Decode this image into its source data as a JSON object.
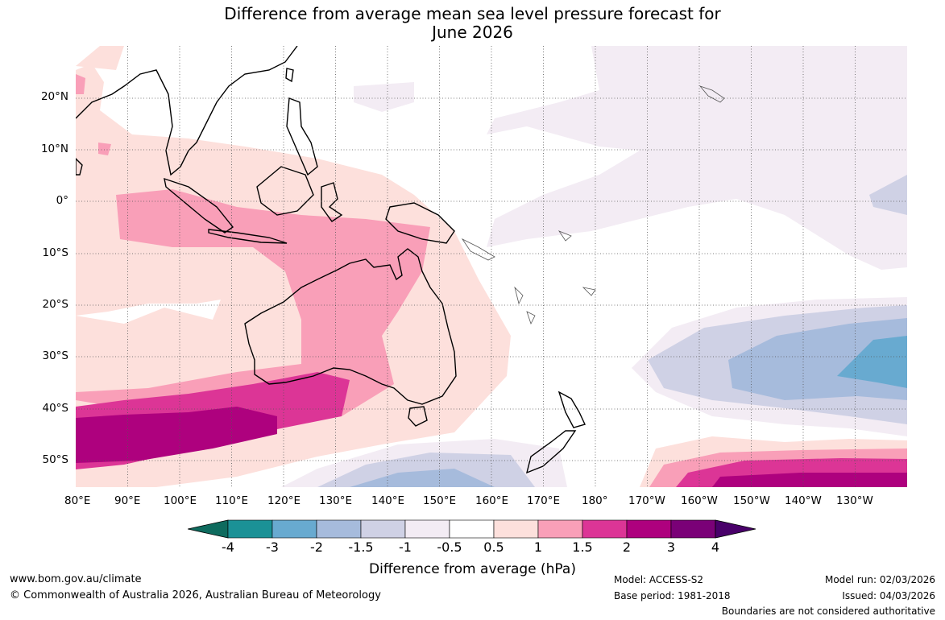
{
  "title_line1": "Difference from average mean sea level pressure forecast for",
  "title_line2": "June 2026",
  "lat_labels": [
    "20°N",
    "10°N",
    "0°",
    "10°S",
    "20°S",
    "30°S",
    "40°S",
    "50°S"
  ],
  "lon_labels": [
    "80°E",
    "90°E",
    "100°E",
    "110°E",
    "120°E",
    "130°E",
    "140°E",
    "150°E",
    "160°E",
    "170°E",
    "180°",
    "170°W",
    "160°W",
    "150°W",
    "140°W",
    "130°W"
  ],
  "legend": {
    "title": "Difference from average (hPa)",
    "ticks": [
      "-4",
      "-3",
      "-2",
      "-1.5",
      "-1",
      "-0.5",
      "0.5",
      "1",
      "1.5",
      "2",
      "3",
      "4"
    ],
    "colors": [
      "#0e6b5e",
      "#1b9196",
      "#68aad0",
      "#a6bbdc",
      "#cfd1e5",
      "#f3ecf4",
      "#ffffff",
      "#fde0dc",
      "#f99fb8",
      "#dc3596",
      "#ae017e",
      "#7a0177",
      "#49006a"
    ]
  },
  "footer": {
    "url": "www.bom.gov.au/climate",
    "copyright": "© Commonwealth of Australia 2026, Australian Bureau of Meteorology",
    "model": "Model: ACCESS-S2",
    "base_period": "Base period: 1981-2018",
    "model_run": "Model run: 02/03/2026",
    "issued": "Issued: 04/03/2026",
    "disclaimer": "Boundaries are not considered authoritative"
  }
}
